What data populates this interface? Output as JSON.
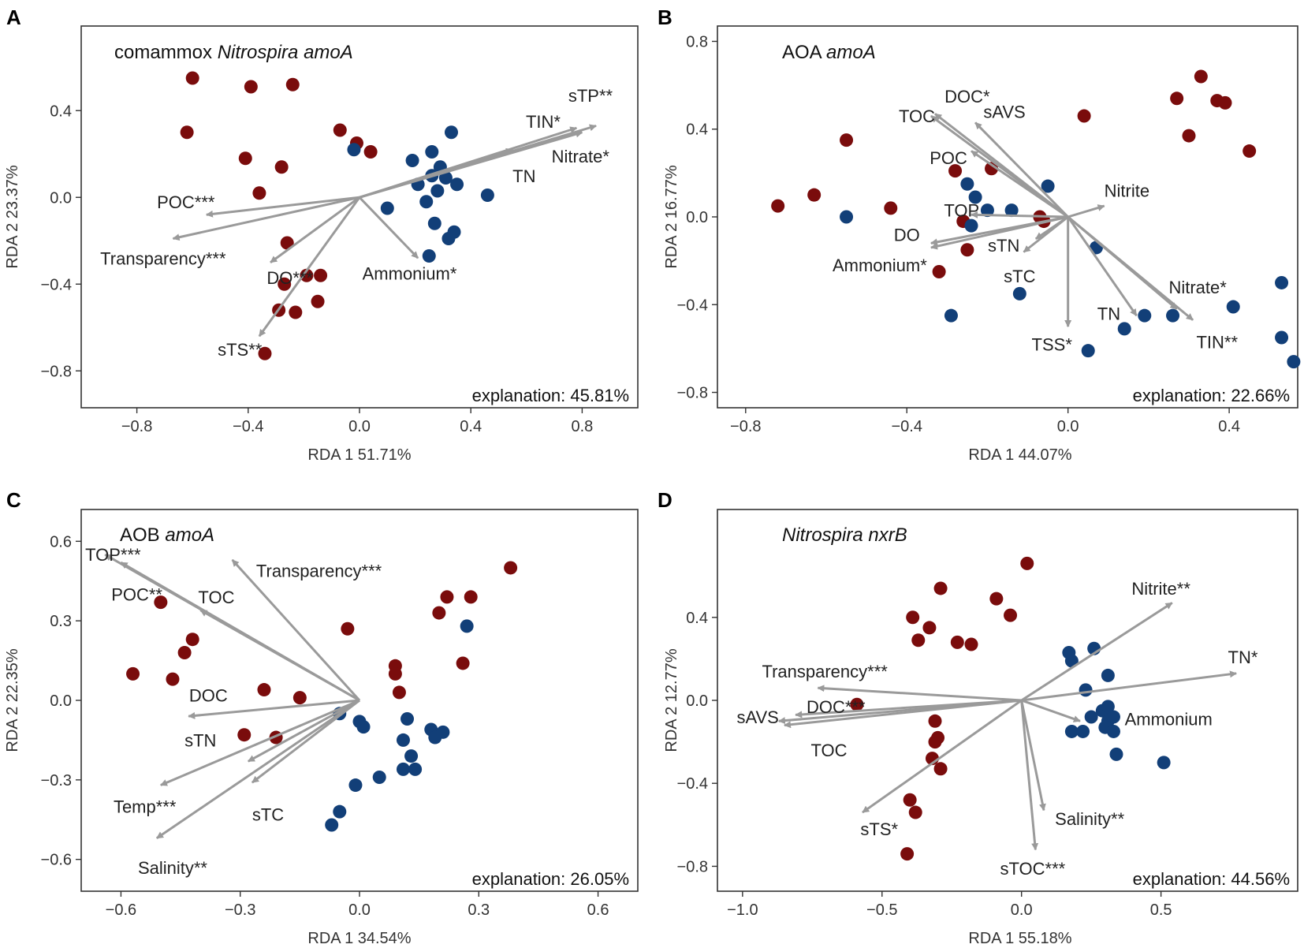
{
  "figure": {
    "colors": {
      "site_red": "#7a0c0c",
      "site_blue": "#123f78",
      "arrow": "#9a9a9a",
      "frame": "#333333"
    }
  },
  "chart_data": [
    {
      "panel": "A",
      "type": "scatter",
      "title": "comammox",
      "title_italic": "Nitrospira amoA",
      "xlabel": "RDA 1 51.71%",
      "ylabel": "RDA 2 23.37%",
      "xlim": [
        -1.0,
        1.0
      ],
      "ylim": [
        -0.97,
        0.79
      ],
      "xticks": [
        -0.8,
        -0.4,
        0.0,
        0.4,
        0.8
      ],
      "xtick_labels": [
        "−0.8",
        "−0.4",
        "0.0",
        "0.4",
        "0.8"
      ],
      "yticks": [
        -0.8,
        -0.4,
        0.0,
        0.4
      ],
      "ytick_labels": [
        "−0.8",
        "−0.4",
        "0.0",
        "0.4"
      ],
      "explanation": "explanation: 45.81%",
      "vectors": [
        {
          "label": "sTP**",
          "x": 0.85,
          "y": 0.33,
          "lx": 0.83,
          "ly": 0.47,
          "anchor": "middle"
        },
        {
          "label": "TIN*",
          "x": 0.78,
          "y": 0.32,
          "lx": 0.66,
          "ly": 0.35,
          "anchor": "middle"
        },
        {
          "label": "Nitrate*",
          "x": 0.8,
          "y": 0.3,
          "lx": 0.69,
          "ly": 0.19,
          "anchor": "start"
        },
        {
          "label": "TN",
          "x": 0.55,
          "y": 0.22,
          "lx": 0.55,
          "ly": 0.1,
          "anchor": "start"
        },
        {
          "label": "Ammonium*",
          "x": 0.21,
          "y": -0.28,
          "lx": 0.18,
          "ly": -0.35,
          "anchor": "middle"
        },
        {
          "label": "POC***",
          "x": -0.55,
          "y": -0.08,
          "lx": -0.52,
          "ly": -0.02,
          "anchor": "end"
        },
        {
          "label": "Transparency***",
          "x": -0.67,
          "y": -0.19,
          "lx": -0.48,
          "ly": -0.28,
          "anchor": "end"
        },
        {
          "label": "DO***",
          "x": -0.32,
          "y": -0.3,
          "lx": -0.25,
          "ly": -0.37,
          "anchor": "middle"
        },
        {
          "label": "sTS**",
          "x": -0.36,
          "y": -0.64,
          "lx": -0.43,
          "ly": -0.7,
          "anchor": "middle"
        }
      ],
      "red_points": [
        [
          -0.6,
          0.55
        ],
        [
          -0.62,
          0.3
        ],
        [
          -0.39,
          0.51
        ],
        [
          -0.24,
          0.52
        ],
        [
          -0.41,
          0.18
        ],
        [
          -0.28,
          0.14
        ],
        [
          -0.36,
          0.02
        ],
        [
          -0.07,
          0.31
        ],
        [
          -0.01,
          0.25
        ],
        [
          0.04,
          0.21
        ],
        [
          -0.26,
          -0.21
        ],
        [
          -0.27,
          -0.4
        ],
        [
          -0.29,
          -0.52
        ],
        [
          -0.23,
          -0.53
        ],
        [
          -0.19,
          -0.36
        ],
        [
          -0.14,
          -0.36
        ],
        [
          -0.15,
          -0.48
        ],
        [
          -0.34,
          -0.72
        ]
      ],
      "blue_points": [
        [
          -0.02,
          0.22
        ],
        [
          0.19,
          0.17
        ],
        [
          0.26,
          0.21
        ],
        [
          0.33,
          0.3
        ],
        [
          0.29,
          0.14
        ],
        [
          0.21,
          0.06
        ],
        [
          0.26,
          0.1
        ],
        [
          0.31,
          0.09
        ],
        [
          0.35,
          0.06
        ],
        [
          0.28,
          0.03
        ],
        [
          0.24,
          -0.02
        ],
        [
          0.1,
          -0.05
        ],
        [
          0.34,
          -0.16
        ],
        [
          0.32,
          -0.19
        ],
        [
          0.27,
          -0.12
        ],
        [
          0.46,
          0.01
        ],
        [
          0.25,
          -0.27
        ]
      ]
    },
    {
      "panel": "B",
      "type": "scatter",
      "title": "AOA",
      "title_italic": "amoA",
      "xlabel": "RDA 1 44.07%",
      "ylabel": "RDA 2 16.77%",
      "xlim": [
        -0.87,
        0.57
      ],
      "ylim": [
        -0.87,
        0.87
      ],
      "xticks": [
        -0.8,
        -0.4,
        0.0,
        0.4
      ],
      "xtick_labels": [
        "−0.8",
        "−0.4",
        "0.0",
        "0.4"
      ],
      "yticks": [
        -0.8,
        -0.4,
        0.0,
        0.4,
        0.8
      ],
      "ytick_labels": [
        "−0.8",
        "−0.4",
        "0.0",
        "0.4",
        "0.8"
      ],
      "explanation": "explanation: 22.66%",
      "vectors": [
        {
          "label": "TOC",
          "x": -0.34,
          "y": 0.46,
          "lx": -0.33,
          "ly": 0.46,
          "anchor": "end"
        },
        {
          "label": "DOC*",
          "x": -0.33,
          "y": 0.47,
          "lx": -0.25,
          "ly": 0.55,
          "anchor": "middle"
        },
        {
          "label": "sAVS",
          "x": -0.23,
          "y": 0.43,
          "lx": -0.21,
          "ly": 0.48,
          "anchor": "start"
        },
        {
          "label": "POC",
          "x": -0.24,
          "y": 0.3,
          "lx": -0.25,
          "ly": 0.27,
          "anchor": "end"
        },
        {
          "label": "Nitrite",
          "x": 0.09,
          "y": 0.05,
          "lx": 0.09,
          "ly": 0.12,
          "anchor": "start"
        },
        {
          "label": "TOP",
          "x": -0.24,
          "y": 0.01,
          "lx": -0.22,
          "ly": 0.03,
          "anchor": "end"
        },
        {
          "label": "DO",
          "x": -0.34,
          "y": -0.12,
          "lx": -0.4,
          "ly": -0.08,
          "anchor": "middle"
        },
        {
          "label": "sTN",
          "x": -0.11,
          "y": -0.16,
          "lx": -0.12,
          "ly": -0.13,
          "anchor": "end"
        },
        {
          "label": "Ammonium*",
          "x": -0.34,
          "y": -0.14,
          "lx": -0.35,
          "ly": -0.22,
          "anchor": "end"
        },
        {
          "label": "sTC",
          "x": -0.08,
          "y": -0.1,
          "lx": -0.12,
          "ly": -0.27,
          "anchor": "middle"
        },
        {
          "label": "TSS*",
          "x": 0.0,
          "y": -0.5,
          "lx": -0.04,
          "ly": -0.58,
          "anchor": "middle"
        },
        {
          "label": "TN",
          "x": 0.17,
          "y": -0.45,
          "lx": 0.13,
          "ly": -0.44,
          "anchor": "end"
        },
        {
          "label": "Nitrate*",
          "x": 0.27,
          "y": -0.42,
          "lx": 0.25,
          "ly": -0.32,
          "anchor": "start"
        },
        {
          "label": "TIN**",
          "x": 0.31,
          "y": -0.47,
          "lx": 0.37,
          "ly": -0.57,
          "anchor": "middle"
        }
      ],
      "red_points": [
        [
          -0.72,
          0.05
        ],
        [
          -0.63,
          0.1
        ],
        [
          -0.55,
          0.35
        ],
        [
          -0.44,
          0.04
        ],
        [
          -0.28,
          0.21
        ],
        [
          -0.26,
          -0.02
        ],
        [
          -0.19,
          0.22
        ],
        [
          -0.07,
          0.0
        ],
        [
          -0.25,
          -0.15
        ],
        [
          -0.32,
          -0.25
        ],
        [
          0.04,
          0.46
        ],
        [
          0.27,
          0.54
        ],
        [
          0.3,
          0.37
        ],
        [
          0.33,
          0.64
        ],
        [
          0.37,
          0.53
        ],
        [
          0.39,
          0.52
        ],
        [
          0.45,
          0.3
        ],
        [
          -0.06,
          -0.02
        ]
      ],
      "blue_points": [
        [
          -0.55,
          0.0
        ],
        [
          -0.25,
          0.15
        ],
        [
          -0.23,
          0.09
        ],
        [
          -0.2,
          0.03
        ],
        [
          -0.14,
          0.03
        ],
        [
          -0.05,
          0.14
        ],
        [
          0.07,
          -0.14
        ],
        [
          -0.24,
          -0.04
        ],
        [
          -0.29,
          -0.45
        ],
        [
          -0.12,
          -0.35
        ],
        [
          0.05,
          -0.61
        ],
        [
          0.14,
          -0.51
        ],
        [
          0.19,
          -0.45
        ],
        [
          0.26,
          -0.45
        ],
        [
          0.41,
          -0.41
        ],
        [
          0.53,
          -0.3
        ],
        [
          0.53,
          -0.55
        ],
        [
          0.56,
          -0.66
        ]
      ]
    },
    {
      "panel": "C",
      "type": "scatter",
      "title": "AOB",
      "title_italic": "amoA",
      "xlabel": "RDA 1 34.54%",
      "ylabel": "RDA 2 22.35%",
      "xlim": [
        -0.7,
        0.7
      ],
      "ylim": [
        -0.72,
        0.72
      ],
      "xticks": [
        -0.6,
        -0.3,
        0.0,
        0.3,
        0.6
      ],
      "xtick_labels": [
        "−0.6",
        "−0.3",
        "0.0",
        "0.3",
        "0.6"
      ],
      "yticks": [
        -0.6,
        -0.3,
        0.0,
        0.3,
        0.6
      ],
      "ytick_labels": [
        "−0.6",
        "−0.3",
        "0.0",
        "0.3",
        "0.6"
      ],
      "explanation": "explanation: 26.05%",
      "vectors": [
        {
          "label": "TOP***",
          "x": -0.64,
          "y": 0.55,
          "lx": -0.62,
          "ly": 0.55,
          "anchor": "middle"
        },
        {
          "label": "POC**",
          "x": -0.6,
          "y": 0.52,
          "lx": -0.56,
          "ly": 0.4,
          "anchor": "middle"
        },
        {
          "label": "TOC",
          "x": -0.4,
          "y": 0.34,
          "lx": -0.36,
          "ly": 0.39,
          "anchor": "middle"
        },
        {
          "label": "Transparency***",
          "x": -0.32,
          "y": 0.53,
          "lx": -0.26,
          "ly": 0.49,
          "anchor": "start"
        },
        {
          "label": "DOC",
          "x": -0.43,
          "y": -0.06,
          "lx": -0.38,
          "ly": 0.02,
          "anchor": "middle"
        },
        {
          "label": "sTN",
          "x": -0.28,
          "y": -0.23,
          "lx": -0.4,
          "ly": -0.15,
          "anchor": "middle"
        },
        {
          "label": "Temp***",
          "x": -0.5,
          "y": -0.32,
          "lx": -0.54,
          "ly": -0.4,
          "anchor": "middle"
        },
        {
          "label": "sTC",
          "x": -0.27,
          "y": -0.31,
          "lx": -0.23,
          "ly": -0.43,
          "anchor": "middle"
        },
        {
          "label": "Salinity**",
          "x": -0.51,
          "y": -0.52,
          "lx": -0.47,
          "ly": -0.63,
          "anchor": "middle"
        }
      ],
      "red_points": [
        [
          -0.57,
          0.1
        ],
        [
          -0.5,
          0.37
        ],
        [
          -0.47,
          0.08
        ],
        [
          -0.44,
          0.18
        ],
        [
          -0.42,
          0.23
        ],
        [
          -0.24,
          0.04
        ],
        [
          -0.15,
          0.01
        ],
        [
          -0.29,
          -0.13
        ],
        [
          -0.21,
          -0.14
        ],
        [
          -0.03,
          0.27
        ],
        [
          0.09,
          0.13
        ],
        [
          0.09,
          0.1
        ],
        [
          0.1,
          0.03
        ],
        [
          0.2,
          0.33
        ],
        [
          0.22,
          0.39
        ],
        [
          0.28,
          0.39
        ],
        [
          0.26,
          0.14
        ],
        [
          0.38,
          0.5
        ]
      ],
      "blue_points": [
        [
          -0.05,
          -0.05
        ],
        [
          0.0,
          -0.08
        ],
        [
          0.01,
          -0.1
        ],
        [
          0.12,
          -0.07
        ],
        [
          0.18,
          -0.11
        ],
        [
          0.21,
          -0.12
        ],
        [
          0.19,
          -0.14
        ],
        [
          0.11,
          -0.15
        ],
        [
          0.13,
          -0.21
        ],
        [
          0.11,
          -0.26
        ],
        [
          0.14,
          -0.26
        ],
        [
          0.05,
          -0.29
        ],
        [
          -0.01,
          -0.32
        ],
        [
          -0.05,
          -0.42
        ],
        [
          -0.07,
          -0.47
        ],
        [
          0.27,
          0.28
        ]
      ]
    },
    {
      "panel": "D",
      "type": "scatter",
      "title": "",
      "title_italic": "Nitrospira nxrB",
      "xlabel": "RDA 1 55.18%",
      "ylabel": "RDA 2 12.77%",
      "xlim": [
        -1.09,
        0.99
      ],
      "ylim": [
        -0.92,
        0.92
      ],
      "xticks": [
        -1.0,
        -0.5,
        0.0,
        0.5
      ],
      "xtick_labels": [
        "−1.0",
        "−0.5",
        "0.0",
        "0.5"
      ],
      "yticks": [
        -0.8,
        -0.4,
        0.0,
        0.4
      ],
      "ytick_labels": [
        "−0.8",
        "−0.4",
        "0.0",
        "0.4"
      ],
      "explanation": "explanation: 44.56%",
      "vectors": [
        {
          "label": "Nitrite**",
          "x": 0.54,
          "y": 0.47,
          "lx": 0.5,
          "ly": 0.54,
          "anchor": "middle"
        },
        {
          "label": "TN*",
          "x": 0.77,
          "y": 0.13,
          "lx": 0.74,
          "ly": 0.21,
          "anchor": "start"
        },
        {
          "label": "Ammonium",
          "x": 0.21,
          "y": -0.1,
          "lx": 0.37,
          "ly": -0.09,
          "anchor": "start"
        },
        {
          "label": "Transparency***",
          "x": -0.73,
          "y": 0.06,
          "lx": -0.48,
          "ly": 0.14,
          "anchor": "end"
        },
        {
          "label": "DOC***",
          "x": -0.81,
          "y": -0.07,
          "lx": -0.56,
          "ly": -0.03,
          "anchor": "end"
        },
        {
          "label": "sAVS",
          "x": -0.87,
          "y": -0.1,
          "lx": -0.87,
          "ly": -0.08,
          "anchor": "end"
        },
        {
          "label": "TOC",
          "x": -0.85,
          "y": -0.12,
          "lx": -0.69,
          "ly": -0.24,
          "anchor": "middle"
        },
        {
          "label": "sTS*",
          "x": -0.57,
          "y": -0.54,
          "lx": -0.51,
          "ly": -0.62,
          "anchor": "middle"
        },
        {
          "label": "Salinity**",
          "x": 0.08,
          "y": -0.53,
          "lx": 0.12,
          "ly": -0.57,
          "anchor": "start"
        },
        {
          "label": "sTOC***",
          "x": 0.05,
          "y": -0.72,
          "lx": 0.04,
          "ly": -0.81,
          "anchor": "middle"
        }
      ],
      "red_points": [
        [
          0.02,
          0.66
        ],
        [
          -0.29,
          0.54
        ],
        [
          -0.09,
          0.49
        ],
        [
          -0.04,
          0.41
        ],
        [
          -0.39,
          0.4
        ],
        [
          -0.33,
          0.35
        ],
        [
          -0.37,
          0.29
        ],
        [
          -0.23,
          0.28
        ],
        [
          -0.18,
          0.27
        ],
        [
          -0.59,
          -0.02
        ],
        [
          -0.31,
          -0.1
        ],
        [
          -0.31,
          -0.2
        ],
        [
          -0.32,
          -0.28
        ],
        [
          -0.29,
          -0.33
        ],
        [
          -0.4,
          -0.48
        ],
        [
          -0.38,
          -0.54
        ],
        [
          -0.41,
          -0.74
        ],
        [
          -0.3,
          -0.18
        ]
      ],
      "blue_points": [
        [
          0.17,
          0.23
        ],
        [
          0.26,
          0.25
        ],
        [
          0.18,
          0.19
        ],
        [
          0.31,
          0.12
        ],
        [
          0.23,
          0.05
        ],
        [
          0.25,
          -0.08
        ],
        [
          0.29,
          -0.05
        ],
        [
          0.31,
          -0.03
        ],
        [
          0.31,
          -0.1
        ],
        [
          0.33,
          -0.08
        ],
        [
          0.3,
          -0.13
        ],
        [
          0.33,
          -0.15
        ],
        [
          0.18,
          -0.15
        ],
        [
          0.22,
          -0.15
        ],
        [
          0.34,
          -0.26
        ],
        [
          0.51,
          -0.3
        ]
      ]
    }
  ]
}
